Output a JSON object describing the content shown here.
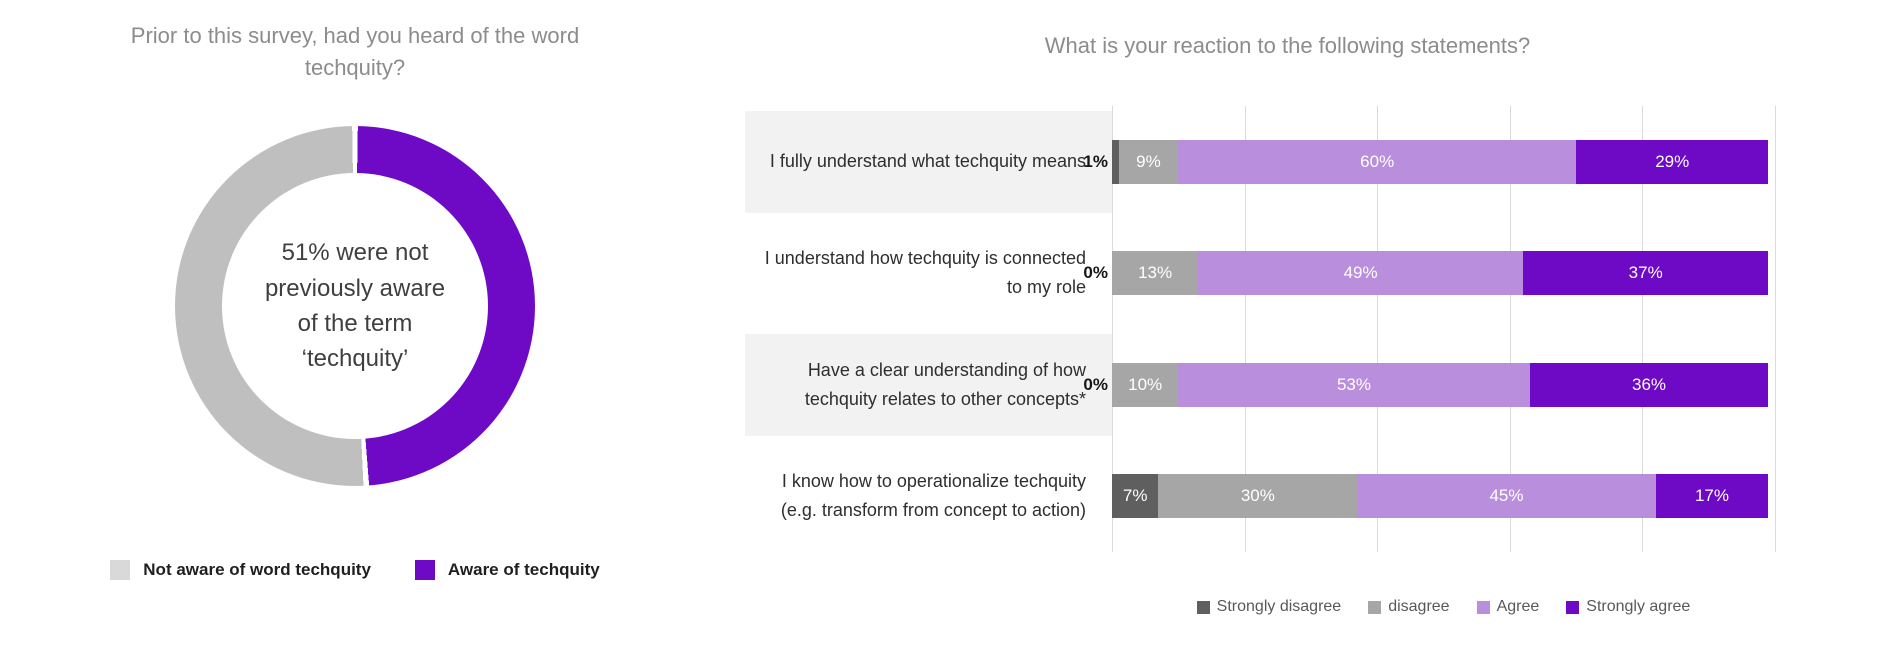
{
  "page": {
    "background": "#FFFFFF"
  },
  "chart_data": [
    {
      "type": "pie",
      "variant": "donut",
      "title": "Prior to this survey, had you heard of the word techquity?",
      "segments_draw_order": [
        {
          "label": "Aware of techquity",
          "value": 49,
          "color": "#6E09C6"
        },
        {
          "label": "Not aware of word techquity",
          "value": 51,
          "color": "#BFBFBF"
        }
      ],
      "start_angle": "12-o-clock",
      "direction": "clockwise",
      "center_text_lines": [
        "51% were not",
        "previously aware",
        "of the term",
        "‘techquity’"
      ],
      "legend_position": "bottom",
      "legend": [
        {
          "label": "Not aware of word techquity",
          "color": "#D9D9D9"
        },
        {
          "label": "Aware of techquity",
          "color": "#6E09C6"
        }
      ]
    },
    {
      "type": "bar",
      "variant": "stacked-horizontal",
      "title": "What is your reaction to the following statements?",
      "categories": [
        "I fully understand what techquity means",
        "I understand how techquity is connected to my role",
        "Have a clear understanding of how techquity relates to other concepts*",
        "I know how to operationalize techquity (e.g. transform from concept to action)"
      ],
      "series": [
        {
          "name": "Strongly disagree",
          "color": "#5F5F5F",
          "values": [
            1,
            0,
            0,
            7
          ]
        },
        {
          "name": "disagree",
          "color": "#A6A6A6",
          "values": [
            9,
            13,
            10,
            30
          ]
        },
        {
          "name": "Agree",
          "color": "#B98EDC",
          "values": [
            60,
            49,
            53,
            45
          ]
        },
        {
          "name": "Strongly agree",
          "color": "#6E09C6",
          "values": [
            29,
            37,
            36,
            17
          ]
        }
      ],
      "value_suffix": "%",
      "xlim": [
        0,
        100
      ],
      "grid": true,
      "gridline_step_pct": 20,
      "gridline_color": "#DADADA",
      "highlighted_category_rows": [
        0,
        2
      ],
      "category_highlight_color": "#F2F2F2",
      "legend_position": "bottom",
      "label_outside_threshold_pct": 5
    }
  ]
}
